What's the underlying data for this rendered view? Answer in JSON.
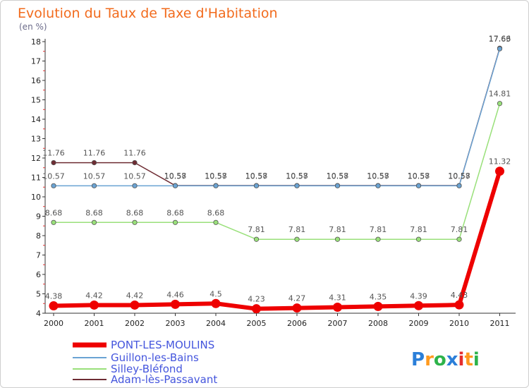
{
  "chart_data": {
    "type": "line",
    "title": "Evolution du Taux de Taxe d'Habitation",
    "subtitle": "(en %)",
    "x": [
      "2000",
      "2001",
      "2002",
      "2003",
      "2004",
      "2005",
      "2006",
      "2007",
      "2008",
      "2009",
      "2010",
      "2011"
    ],
    "ylim": [
      4,
      18
    ],
    "yticks": [
      4,
      5,
      6,
      7,
      8,
      9,
      10,
      11,
      12,
      13,
      14,
      15,
      16,
      17,
      18
    ],
    "grid": false,
    "legend_position": "bottom-left",
    "series": [
      {
        "name": "Adam-lès-Passavant",
        "color": "#6e2c33",
        "values": [
          11.76,
          11.76,
          11.76,
          10.58,
          10.58,
          10.58,
          10.58,
          10.58,
          10.58,
          10.58,
          10.58,
          17.66
        ]
      },
      {
        "name": "Silley-Bléfond",
        "color": "#99e07a",
        "values": [
          8.68,
          8.68,
          8.68,
          8.68,
          8.68,
          7.81,
          7.81,
          7.81,
          7.81,
          7.81,
          7.81,
          14.81
        ]
      },
      {
        "name": "Guillon-les-Bains",
        "color": "#6aa3d3",
        "values": [
          10.57,
          10.57,
          10.57,
          10.57,
          10.57,
          10.57,
          10.57,
          10.57,
          10.57,
          10.57,
          10.57,
          17.63
        ]
      },
      {
        "name": "PONT-LES-MOULINS",
        "color": "#ee0000",
        "values": [
          4.38,
          4.42,
          4.42,
          4.46,
          4.5,
          4.23,
          4.27,
          4.31,
          4.35,
          4.39,
          4.43,
          11.32
        ]
      }
    ],
    "labels": {
      "Adam-lès-Passavant": [
        "11.76",
        "11.76",
        "11.76",
        "10.58",
        "10.58",
        "10.58",
        "10.58",
        "10.58",
        "10.58",
        "10.58",
        "10.58",
        "17.66"
      ],
      "Silley-Bléfond": [
        "8.68",
        "8.68",
        "8.68",
        "8.68",
        "8.68",
        "7.81",
        "7.81",
        "7.81",
        "7.81",
        "7.81",
        "7.81",
        "14.81"
      ],
      "Guillon-les-Bains": [
        "10.57",
        "10.57",
        "10.57",
        "10.57",
        "10.57",
        "10.57",
        "10.57",
        "10.57",
        "10.57",
        "10.57",
        "10.57",
        "17.63"
      ],
      "PONT-LES-MOULINS": [
        "4.38",
        "4.42",
        "4.42",
        "4.46",
        "4.5",
        "4.23",
        "4.27",
        "4.31",
        "4.35",
        "4.39",
        "4.43",
        "11.32"
      ]
    }
  },
  "legend": {
    "items": [
      {
        "name": "PONT-LES-MOULINS",
        "color": "#ee0000"
      },
      {
        "name": "Guillon-les-Bains",
        "color": "#6aa3d3"
      },
      {
        "name": "Silley-Bléfond",
        "color": "#99e07a"
      },
      {
        "name": "Adam-lès-Passavant",
        "color": "#6e2c33"
      }
    ]
  },
  "logo": {
    "text": "Proxiti",
    "colors": [
      "#2b7fd9",
      "#ff9a1f",
      "#2db34a",
      "#2b7fd9",
      "#e52d2d",
      "#ff9a1f",
      "#2db34a"
    ]
  }
}
